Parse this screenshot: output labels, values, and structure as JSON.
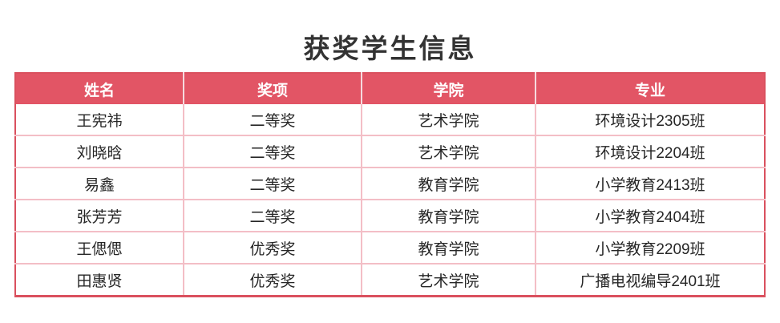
{
  "title": "获奖学生信息",
  "table": {
    "headers": [
      "姓名",
      "奖项",
      "学院",
      "专业"
    ],
    "rows": [
      [
        "王宪祎",
        "二等奖",
        "艺术学院",
        "环境设计2305班"
      ],
      [
        "刘晓晗",
        "二等奖",
        "艺术学院",
        "环境设计2204班"
      ],
      [
        "易鑫",
        "二等奖",
        "教育学院",
        "小学教育2413班"
      ],
      [
        "张芳芳",
        "二等奖",
        "教育学院",
        "小学教育2404班"
      ],
      [
        "王偲偲",
        "优秀奖",
        "教育学院",
        "小学教育2209班"
      ],
      [
        "田惠贤",
        "优秀奖",
        "艺术学院",
        "广播电视编导2401班"
      ]
    ]
  },
  "colors": {
    "header_bg": "#e25565",
    "header_text": "#ffffff",
    "grid_line": "#f3bec6",
    "outer_border": "#da505e",
    "title_text": "#333333",
    "body_text": "#262626"
  }
}
